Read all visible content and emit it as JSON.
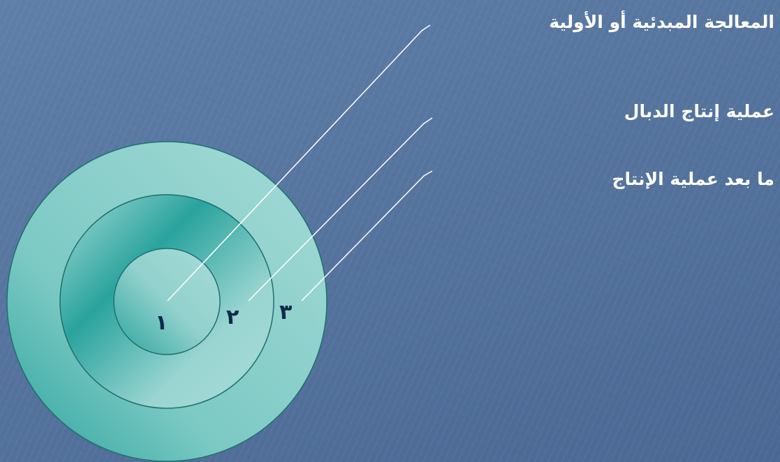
{
  "colors": {
    "background": "#55749e",
    "ring_light": "#97d4d0",
    "ring_dark": "#2fa8a2",
    "ring_stroke": "#1f6f6d",
    "leader_line": "#ffffff",
    "label_text": "#ffffff",
    "number_text": "#0d2a4a"
  },
  "stages": [
    {
      "number": "١",
      "label": "المعالجة المبدئية أو الأولية"
    },
    {
      "number": "٢",
      "label": "عملية إنتاج الدبال"
    },
    {
      "number": "٣",
      "label": "ما بعد عملية الإنتاج"
    }
  ]
}
